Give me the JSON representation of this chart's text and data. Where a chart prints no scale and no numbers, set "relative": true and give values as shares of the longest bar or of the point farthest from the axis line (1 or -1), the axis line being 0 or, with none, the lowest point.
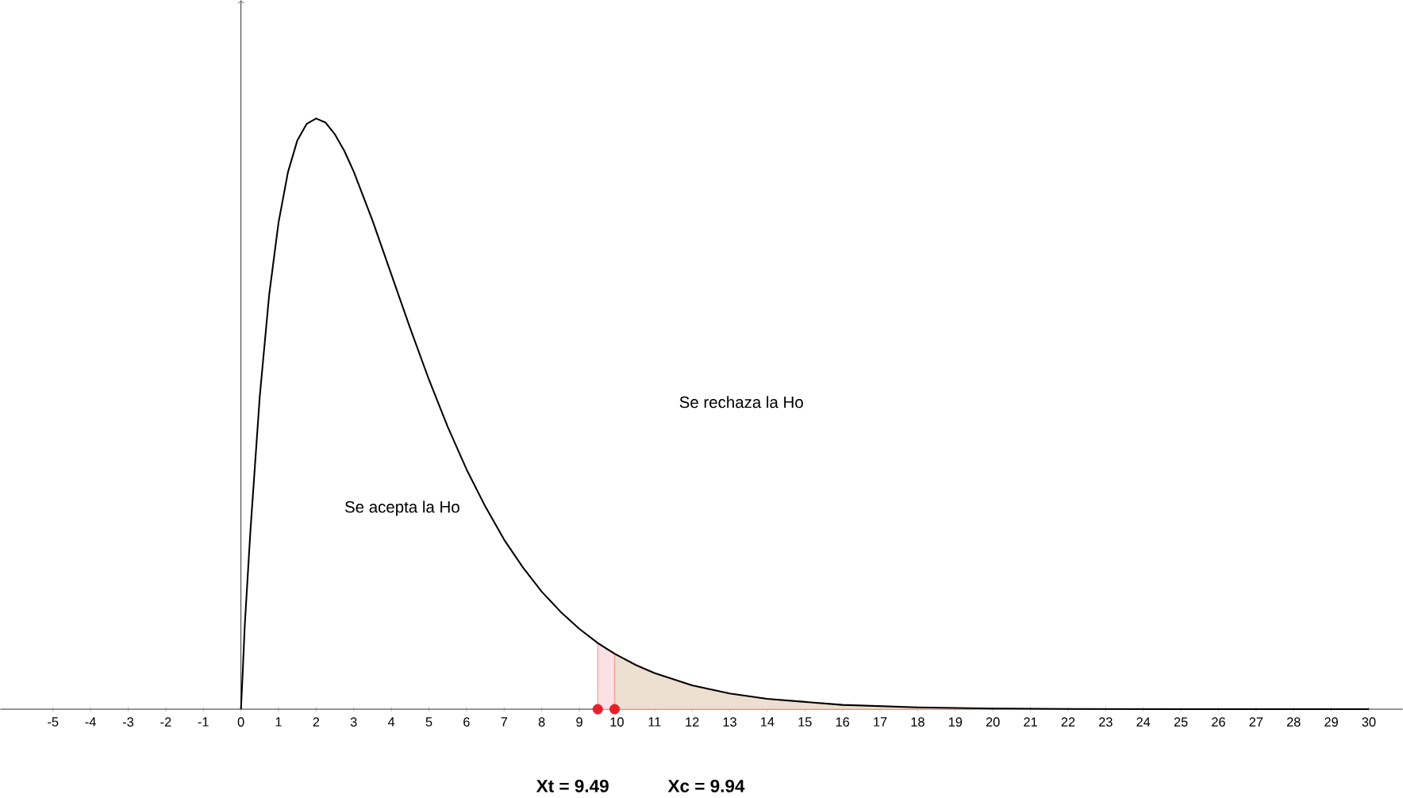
{
  "chart_data": {
    "type": "line",
    "relative": true,
    "xlim": [
      -6.4,
      30.9
    ],
    "xticks": [
      -5,
      -4,
      -3,
      -2,
      -1,
      0,
      1,
      2,
      3,
      4,
      5,
      6,
      7,
      8,
      9,
      10,
      11,
      12,
      13,
      14,
      15,
      16,
      17,
      18,
      19,
      20,
      21,
      22,
      23,
      24,
      25,
      26,
      27,
      28,
      29,
      30
    ],
    "series": [
      {
        "type": "area",
        "color": "#fbe0e6",
        "x": [
          9.49,
          9.94
        ],
        "values": [
          0.112,
          0.0938
        ]
      },
      {
        "type": "area",
        "color": "#eddfd0",
        "x": [
          9.94,
          11,
          12,
          13,
          14,
          16,
          18,
          20,
          22,
          25,
          30
        ],
        "values": [
          0.0938,
          0.0611,
          0.0404,
          0.0265,
          0.0174,
          0.0073,
          0.003,
          0.0012,
          0.0005,
          0.0001,
          0
        ]
      },
      {
        "color": "#000000",
        "marker": "none",
        "x": [
          0,
          0.05,
          0.1,
          0.25,
          0.5,
          0.75,
          1,
          1.25,
          1.5,
          1.75,
          2,
          2.25,
          2.5,
          2.75,
          3,
          3.5,
          4,
          4.5,
          5,
          5.5,
          6,
          6.5,
          7,
          7.5,
          8,
          8.5,
          9,
          9.49,
          9.94,
          10.5,
          11,
          12,
          13,
          14,
          16,
          18,
          20,
          22,
          25,
          30
        ],
        "values": [
          0,
          0.066,
          0.14,
          0.3,
          0.529,
          0.701,
          0.824,
          0.909,
          0.963,
          0.991,
          1,
          0.993,
          0.973,
          0.945,
          0.91,
          0.827,
          0.736,
          0.645,
          0.558,
          0.478,
          0.406,
          0.343,
          0.287,
          0.24,
          0.199,
          0.165,
          0.136,
          0.112,
          0.0938,
          0.0748,
          0.0611,
          0.0404,
          0.0265,
          0.0174,
          0.0073,
          0.003,
          0.0012,
          0.0005,
          0.0001,
          0
        ]
      },
      {
        "type": "scatter",
        "color": "#e8202a",
        "marker": "circle",
        "x": [
          9.49,
          9.94
        ],
        "values": [
          0,
          0
        ]
      }
    ],
    "annotations": [
      "Se acepta la Ho",
      "Se rechaza la Ho",
      "Xt = 9.49",
      "Xc = 9.94"
    ]
  }
}
